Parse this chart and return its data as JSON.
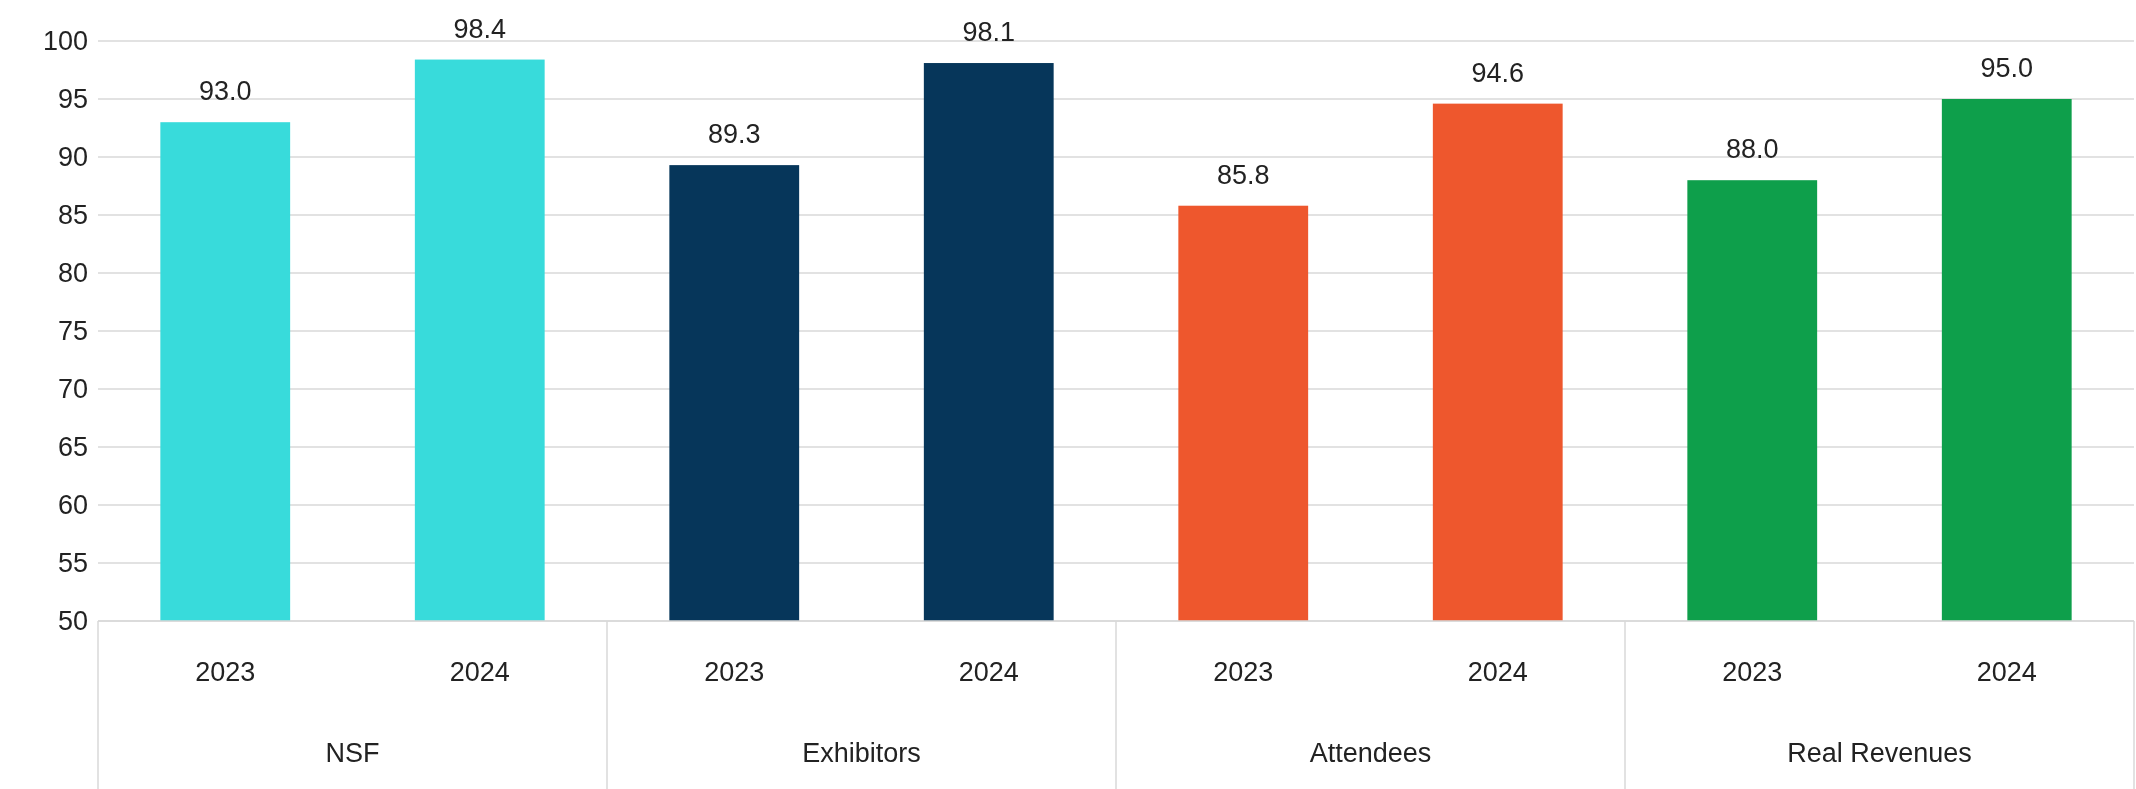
{
  "chart_data": {
    "type": "bar",
    "categories": [
      "2023",
      "2024",
      "2023",
      "2024",
      "2023",
      "2024",
      "2023",
      "2024"
    ],
    "values": [
      93.0,
      98.4,
      89.3,
      98.1,
      85.8,
      94.6,
      88.0,
      95.0
    ],
    "colors": [
      "#38dbdb",
      "#38dbdb",
      "#06365a",
      "#06365a",
      "#ee572d",
      "#ee572d",
      "#0e9f4b",
      "#0e9f4b"
    ],
    "value_labels": [
      "93.0",
      "98.4",
      "89.3",
      "98.1",
      "85.8",
      "94.6",
      "88.0",
      "95.0"
    ],
    "annotations": [
      "NSF",
      "Exhibitors",
      "Attendees",
      "Real Revenues"
    ],
    "ylim": [
      50,
      100
    ],
    "yticks": [
      50,
      55,
      60,
      65,
      70,
      75,
      80,
      85,
      90,
      95,
      100
    ],
    "grid": "y"
  }
}
